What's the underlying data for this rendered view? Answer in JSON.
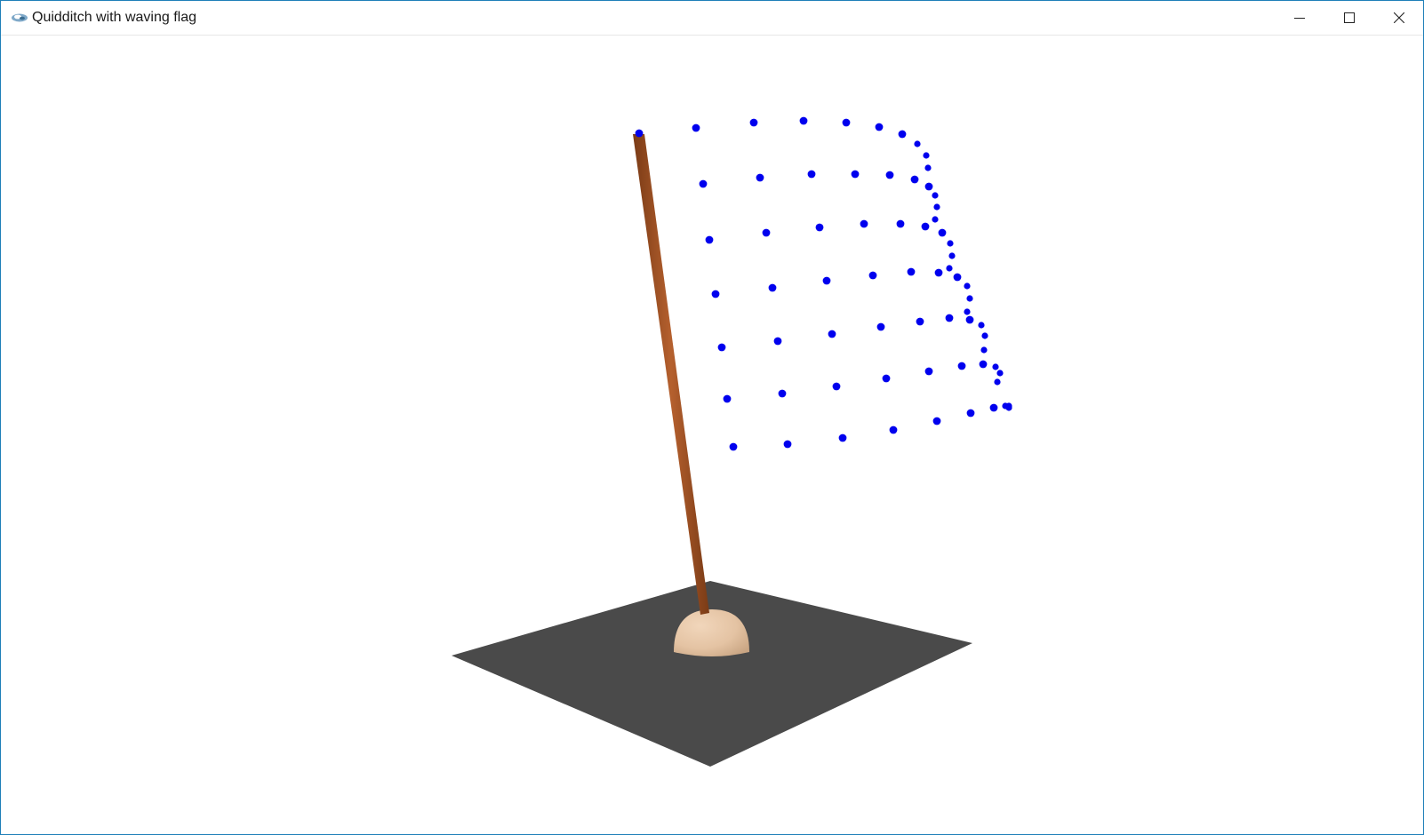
{
  "window": {
    "title": "Quidditch with waving flag",
    "icon": "app-window-icon",
    "controls": {
      "minimize_icon": "minimize-icon",
      "maximize_icon": "maximize-icon",
      "close_icon": "close-icon"
    }
  },
  "scene": {
    "ground_color": "#4a4a4a",
    "base_color": "#e4c3a3",
    "pole_color": "#a0522d",
    "flag_point_color": "#0000ee"
  }
}
